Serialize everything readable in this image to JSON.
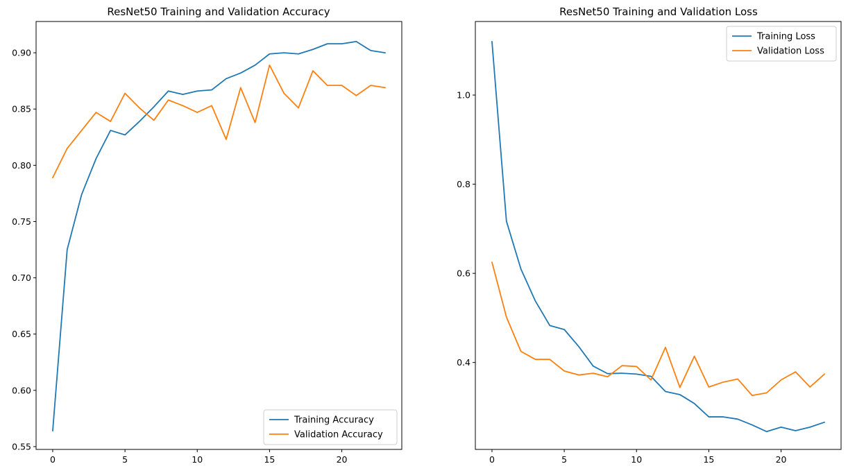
{
  "chart_data": [
    {
      "type": "line",
      "title": "ResNet50 Training and Validation Accuracy",
      "xlabel": "",
      "ylabel": "",
      "x": [
        0,
        1,
        2,
        3,
        4,
        5,
        6,
        7,
        8,
        9,
        10,
        11,
        12,
        13,
        14,
        15,
        16,
        17,
        18,
        19,
        20,
        21,
        22,
        23
      ],
      "xlim": [
        -1.15,
        24.15
      ],
      "ylim": [
        0.5475,
        0.9278
      ],
      "xticks": [
        0,
        5,
        10,
        15,
        20
      ],
      "xtick_labels": [
        "0",
        "5",
        "10",
        "15",
        "20"
      ],
      "yticks": [
        0.55,
        0.6,
        0.65,
        0.7,
        0.75,
        0.8,
        0.85,
        0.9
      ],
      "ytick_labels": [
        "0.55",
        "0.60",
        "0.65",
        "0.70",
        "0.75",
        "0.80",
        "0.85",
        "0.90"
      ],
      "grid": false,
      "legend_position": "lower-right",
      "series": [
        {
          "name": "Training Accuracy",
          "color": "#1f77b4",
          "values": [
            0.564,
            0.725,
            0.774,
            0.806,
            0.831,
            0.827,
            0.839,
            0.852,
            0.866,
            0.863,
            0.866,
            0.867,
            0.877,
            0.882,
            0.889,
            0.899,
            0.9,
            0.899,
            0.903,
            0.908,
            0.908,
            0.91,
            0.902,
            0.9
          ]
        },
        {
          "name": "Validation Accuracy",
          "color": "#ff7f0e",
          "values": [
            0.789,
            0.815,
            0.831,
            0.847,
            0.839,
            0.864,
            0.851,
            0.84,
            0.858,
            0.853,
            0.847,
            0.853,
            0.823,
            0.869,
            0.838,
            0.889,
            0.864,
            0.851,
            0.884,
            0.871,
            0.871,
            0.862,
            0.871,
            0.869
          ]
        }
      ]
    },
    {
      "type": "line",
      "title": "ResNet50 Training and Validation Loss",
      "xlabel": "",
      "ylabel": "",
      "x": [
        0,
        1,
        2,
        3,
        4,
        5,
        6,
        7,
        8,
        9,
        10,
        11,
        12,
        13,
        14,
        15,
        16,
        17,
        18,
        19,
        20,
        21,
        22,
        23
      ],
      "xlim": [
        -1.15,
        24.15
      ],
      "ylim": [
        0.205,
        1.165
      ],
      "xticks": [
        0,
        5,
        10,
        15,
        20
      ],
      "xtick_labels": [
        "0",
        "5",
        "10",
        "15",
        "20"
      ],
      "yticks": [
        0.4,
        0.6,
        0.8,
        1.0
      ],
      "ytick_labels": [
        "0.4",
        "0.6",
        "0.8",
        "1.0"
      ],
      "grid": false,
      "legend_position": "upper-right",
      "series": [
        {
          "name": "Training Loss",
          "color": "#1f77b4",
          "values": [
            1.12,
            0.717,
            0.61,
            0.538,
            0.483,
            0.474,
            0.436,
            0.392,
            0.375,
            0.376,
            0.374,
            0.369,
            0.335,
            0.328,
            0.308,
            0.278,
            0.278,
            0.273,
            0.26,
            0.245,
            0.255,
            0.247,
            0.255,
            0.266
          ]
        },
        {
          "name": "Validation Loss",
          "color": "#ff7f0e",
          "values": [
            0.625,
            0.502,
            0.425,
            0.407,
            0.407,
            0.381,
            0.372,
            0.376,
            0.368,
            0.393,
            0.391,
            0.361,
            0.434,
            0.344,
            0.414,
            0.345,
            0.356,
            0.363,
            0.326,
            0.332,
            0.361,
            0.379,
            0.345,
            0.374
          ]
        }
      ]
    }
  ]
}
